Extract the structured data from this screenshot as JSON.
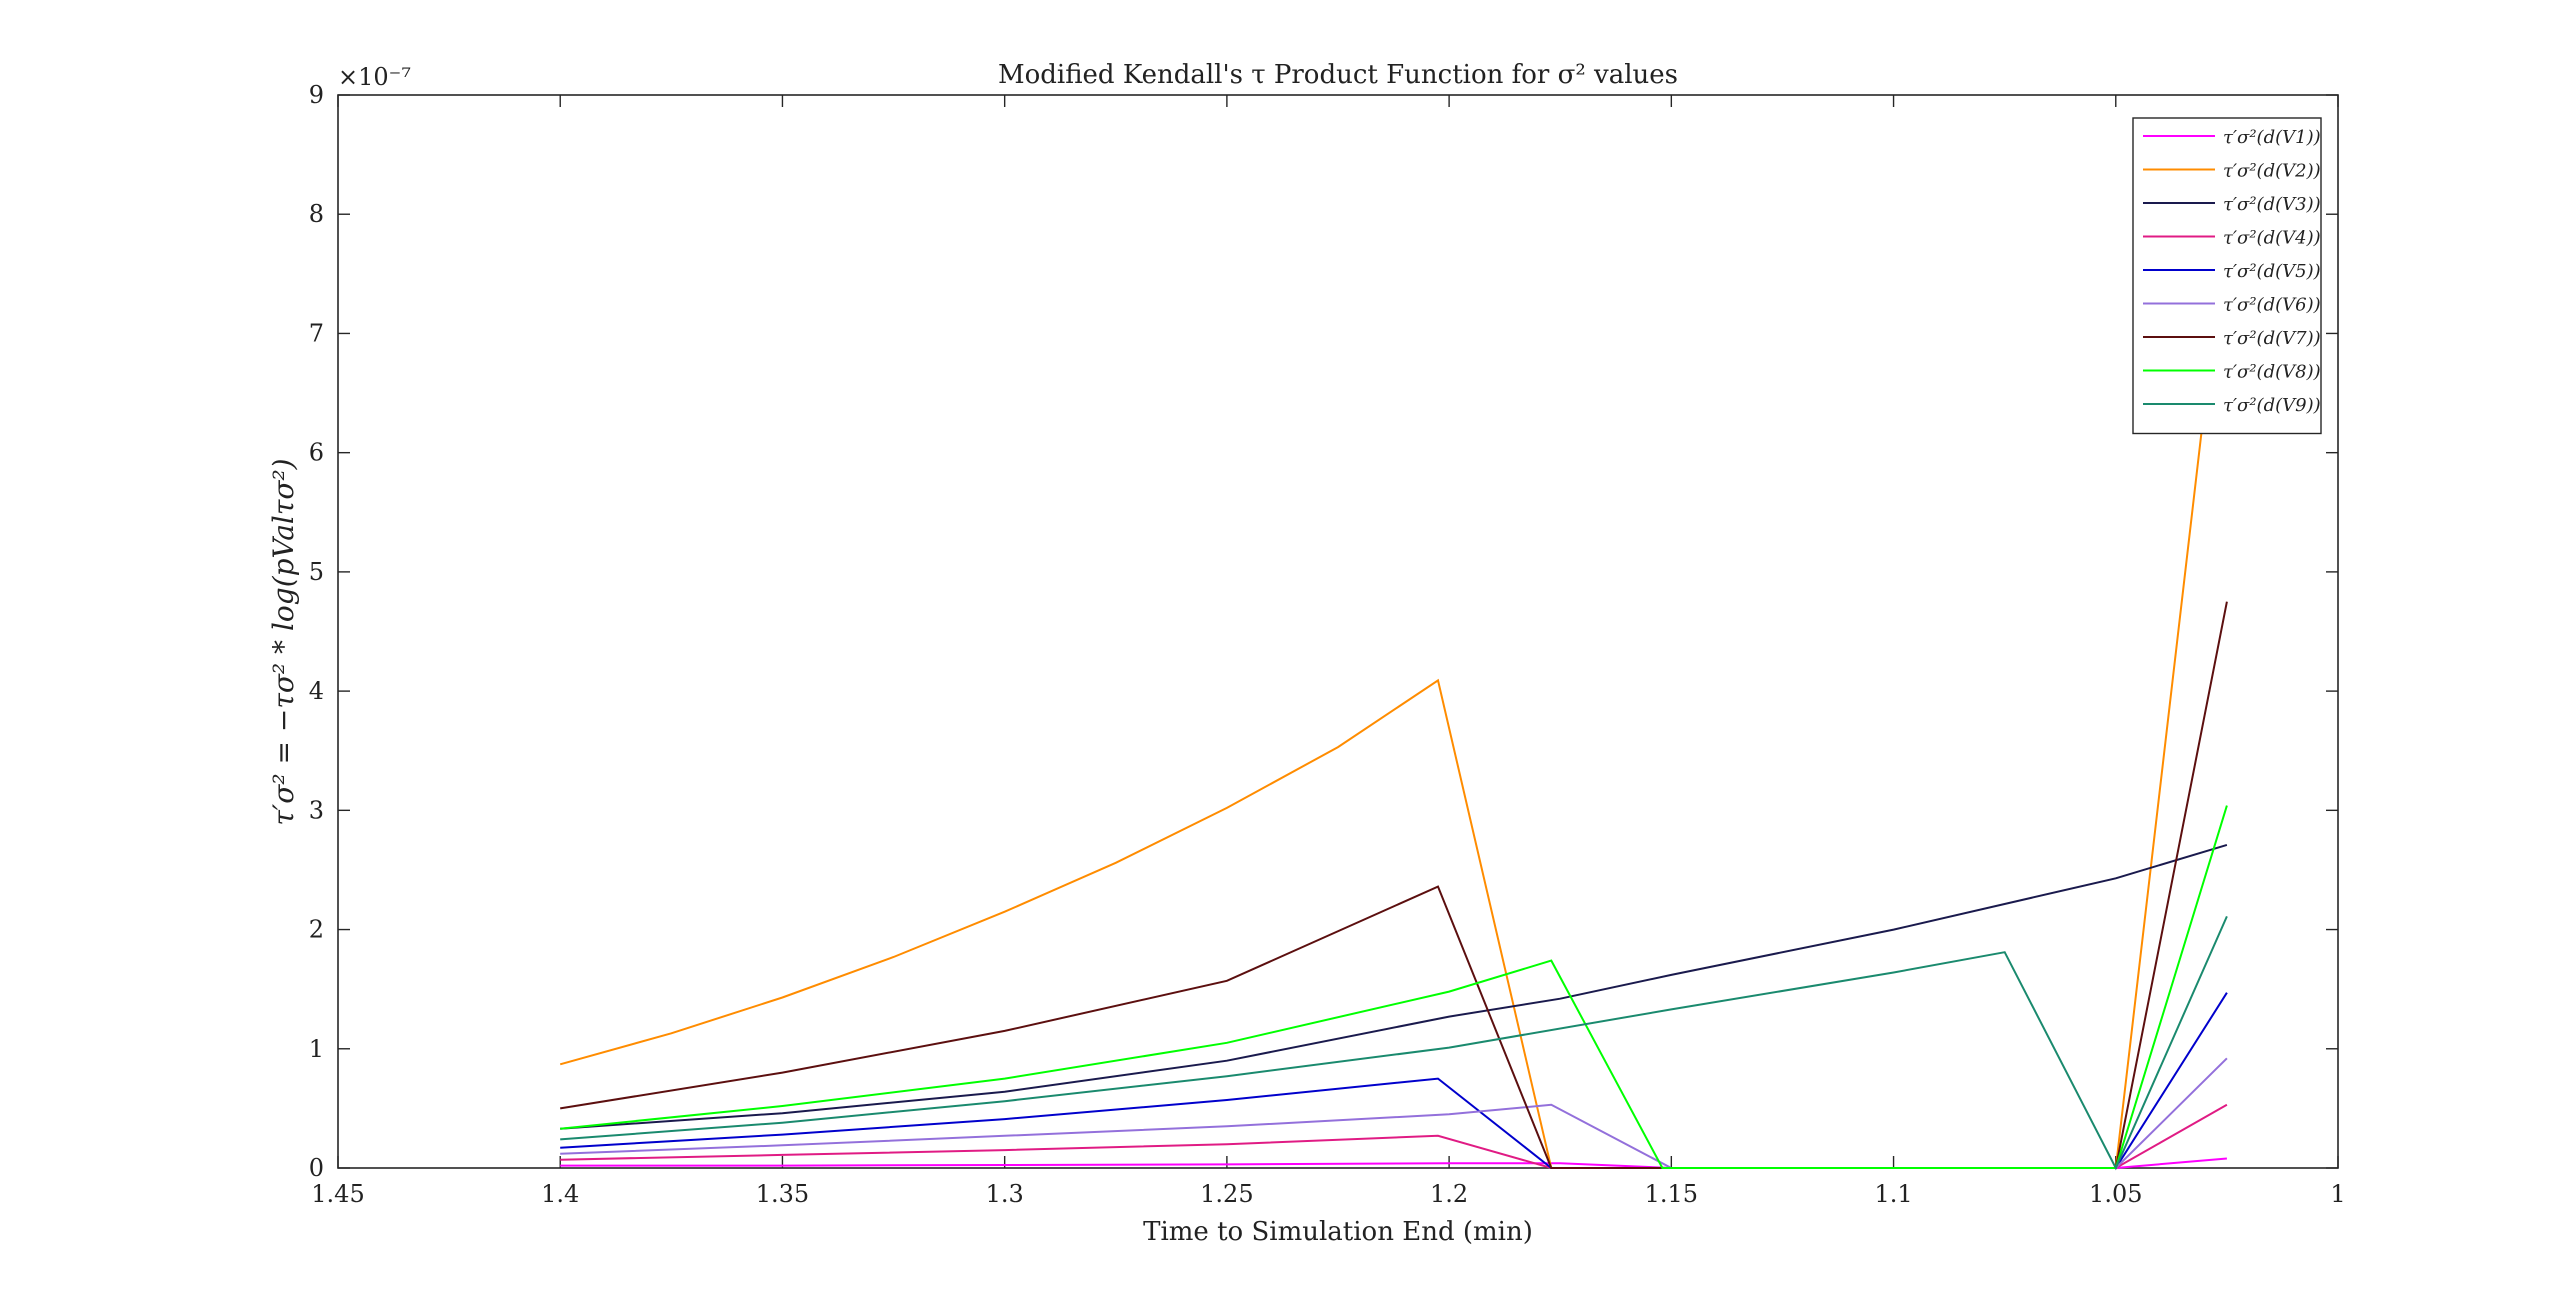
{
  "chart_data": {
    "type": "line",
    "title": "Modified Kendall's τ Product Function for σ² values",
    "xlabel": "Time to Simulation End (min)",
    "ylabel": "τ′σ² = −τσ² * log(pValτσ²)",
    "xlim": [
      1.45,
      1.0
    ],
    "ylim": [
      0,
      9
    ],
    "x_reversed": true,
    "y_exponent_label": "×10⁻⁷",
    "x_ticks": [
      1.45,
      1.4,
      1.35,
      1.3,
      1.25,
      1.2,
      1.15,
      1.1,
      1.05,
      1.0
    ],
    "x_tick_labels": [
      "1.45",
      "1.4",
      "1.35",
      "1.3",
      "1.25",
      "1.2",
      "1.15",
      "1.1",
      "1.05",
      "1"
    ],
    "y_ticks": [
      0,
      1,
      2,
      3,
      4,
      5,
      6,
      7,
      8,
      9
    ],
    "y_tick_labels": [
      "0",
      "1",
      "2",
      "3",
      "4",
      "5",
      "6",
      "7",
      "8",
      "9"
    ],
    "grid": false,
    "legend_position": "top-right",
    "series": [
      {
        "name": "τ′σ²(d(V1))",
        "color": "#ff00ff",
        "points": [
          [
            1.4,
            0.02
          ],
          [
            1.35,
            0.02
          ],
          [
            1.3,
            0.025
          ],
          [
            1.25,
            0.03
          ],
          [
            1.2,
            0.04
          ],
          [
            1.175,
            0.04
          ],
          [
            1.15,
            0
          ],
          [
            1.1,
            0
          ],
          [
            1.05,
            0
          ],
          [
            1.025,
            0.08
          ]
        ]
      },
      {
        "name": "τ′σ²(d(V2))",
        "color": "#ff8c00",
        "points": [
          [
            1.4,
            0.87
          ],
          [
            1.375,
            1.13
          ],
          [
            1.35,
            1.43
          ],
          [
            1.325,
            1.77
          ],
          [
            1.3,
            2.15
          ],
          [
            1.275,
            2.56
          ],
          [
            1.25,
            3.02
          ],
          [
            1.225,
            3.53
          ],
          [
            1.2025,
            4.09
          ],
          [
            1.177,
            0
          ],
          [
            1.15,
            0
          ],
          [
            1.1,
            0
          ],
          [
            1.05,
            0
          ],
          [
            1.025,
            8.0
          ]
        ]
      },
      {
        "name": "τ′σ²(d(V3))",
        "color": "#1a1a4d",
        "points": [
          [
            1.4,
            0.33
          ],
          [
            1.35,
            0.46
          ],
          [
            1.3,
            0.64
          ],
          [
            1.25,
            0.9
          ],
          [
            1.2,
            1.27
          ],
          [
            1.175,
            1.42
          ],
          [
            1.15,
            1.62
          ],
          [
            1.1,
            2.0
          ],
          [
            1.05,
            2.43
          ],
          [
            1.025,
            2.71
          ]
        ]
      },
      {
        "name": "τ′σ²(d(V4))",
        "color": "#e01b84",
        "points": [
          [
            1.4,
            0.07
          ],
          [
            1.35,
            0.11
          ],
          [
            1.3,
            0.15
          ],
          [
            1.25,
            0.2
          ],
          [
            1.2025,
            0.27
          ],
          [
            1.177,
            0
          ],
          [
            1.15,
            0
          ],
          [
            1.1,
            0
          ],
          [
            1.05,
            0
          ],
          [
            1.025,
            0.53
          ]
        ]
      },
      {
        "name": "τ′σ²(d(V5))",
        "color": "#0000cc",
        "points": [
          [
            1.4,
            0.17
          ],
          [
            1.35,
            0.28
          ],
          [
            1.3,
            0.41
          ],
          [
            1.25,
            0.57
          ],
          [
            1.2025,
            0.75
          ],
          [
            1.177,
            0
          ],
          [
            1.15,
            0
          ],
          [
            1.1,
            0
          ],
          [
            1.05,
            0
          ],
          [
            1.025,
            1.47
          ]
        ]
      },
      {
        "name": "τ′σ²(d(V6))",
        "color": "#9370db",
        "points": [
          [
            1.4,
            0.12
          ],
          [
            1.35,
            0.19
          ],
          [
            1.3,
            0.27
          ],
          [
            1.25,
            0.35
          ],
          [
            1.2,
            0.45
          ],
          [
            1.177,
            0.53
          ],
          [
            1.15,
            0
          ],
          [
            1.1,
            0
          ],
          [
            1.05,
            0
          ],
          [
            1.025,
            0.92
          ]
        ]
      },
      {
        "name": "τ′σ²(d(V7))",
        "color": "#5c0f0f",
        "points": [
          [
            1.4,
            0.5
          ],
          [
            1.35,
            0.8
          ],
          [
            1.3,
            1.15
          ],
          [
            1.25,
            1.57
          ],
          [
            1.2025,
            2.36
          ],
          [
            1.177,
            0
          ],
          [
            1.15,
            0
          ],
          [
            1.1,
            0
          ],
          [
            1.05,
            0
          ],
          [
            1.025,
            4.75
          ]
        ]
      },
      {
        "name": "τ′σ²(d(V8))",
        "color": "#00ff00",
        "points": [
          [
            1.4,
            0.33
          ],
          [
            1.35,
            0.52
          ],
          [
            1.3,
            0.75
          ],
          [
            1.25,
            1.05
          ],
          [
            1.2,
            1.48
          ],
          [
            1.177,
            1.74
          ],
          [
            1.152,
            0
          ],
          [
            1.1,
            0
          ],
          [
            1.05,
            0
          ],
          [
            1.025,
            3.04
          ]
        ]
      },
      {
        "name": "τ′σ²(d(V9))",
        "color": "#1a8a6e",
        "points": [
          [
            1.4,
            0.24
          ],
          [
            1.35,
            0.38
          ],
          [
            1.3,
            0.56
          ],
          [
            1.25,
            0.77
          ],
          [
            1.2,
            1.01
          ],
          [
            1.15,
            1.33
          ],
          [
            1.1,
            1.64
          ],
          [
            1.075,
            1.81
          ],
          [
            1.05,
            0
          ],
          [
            1.025,
            2.11
          ]
        ]
      }
    ]
  }
}
